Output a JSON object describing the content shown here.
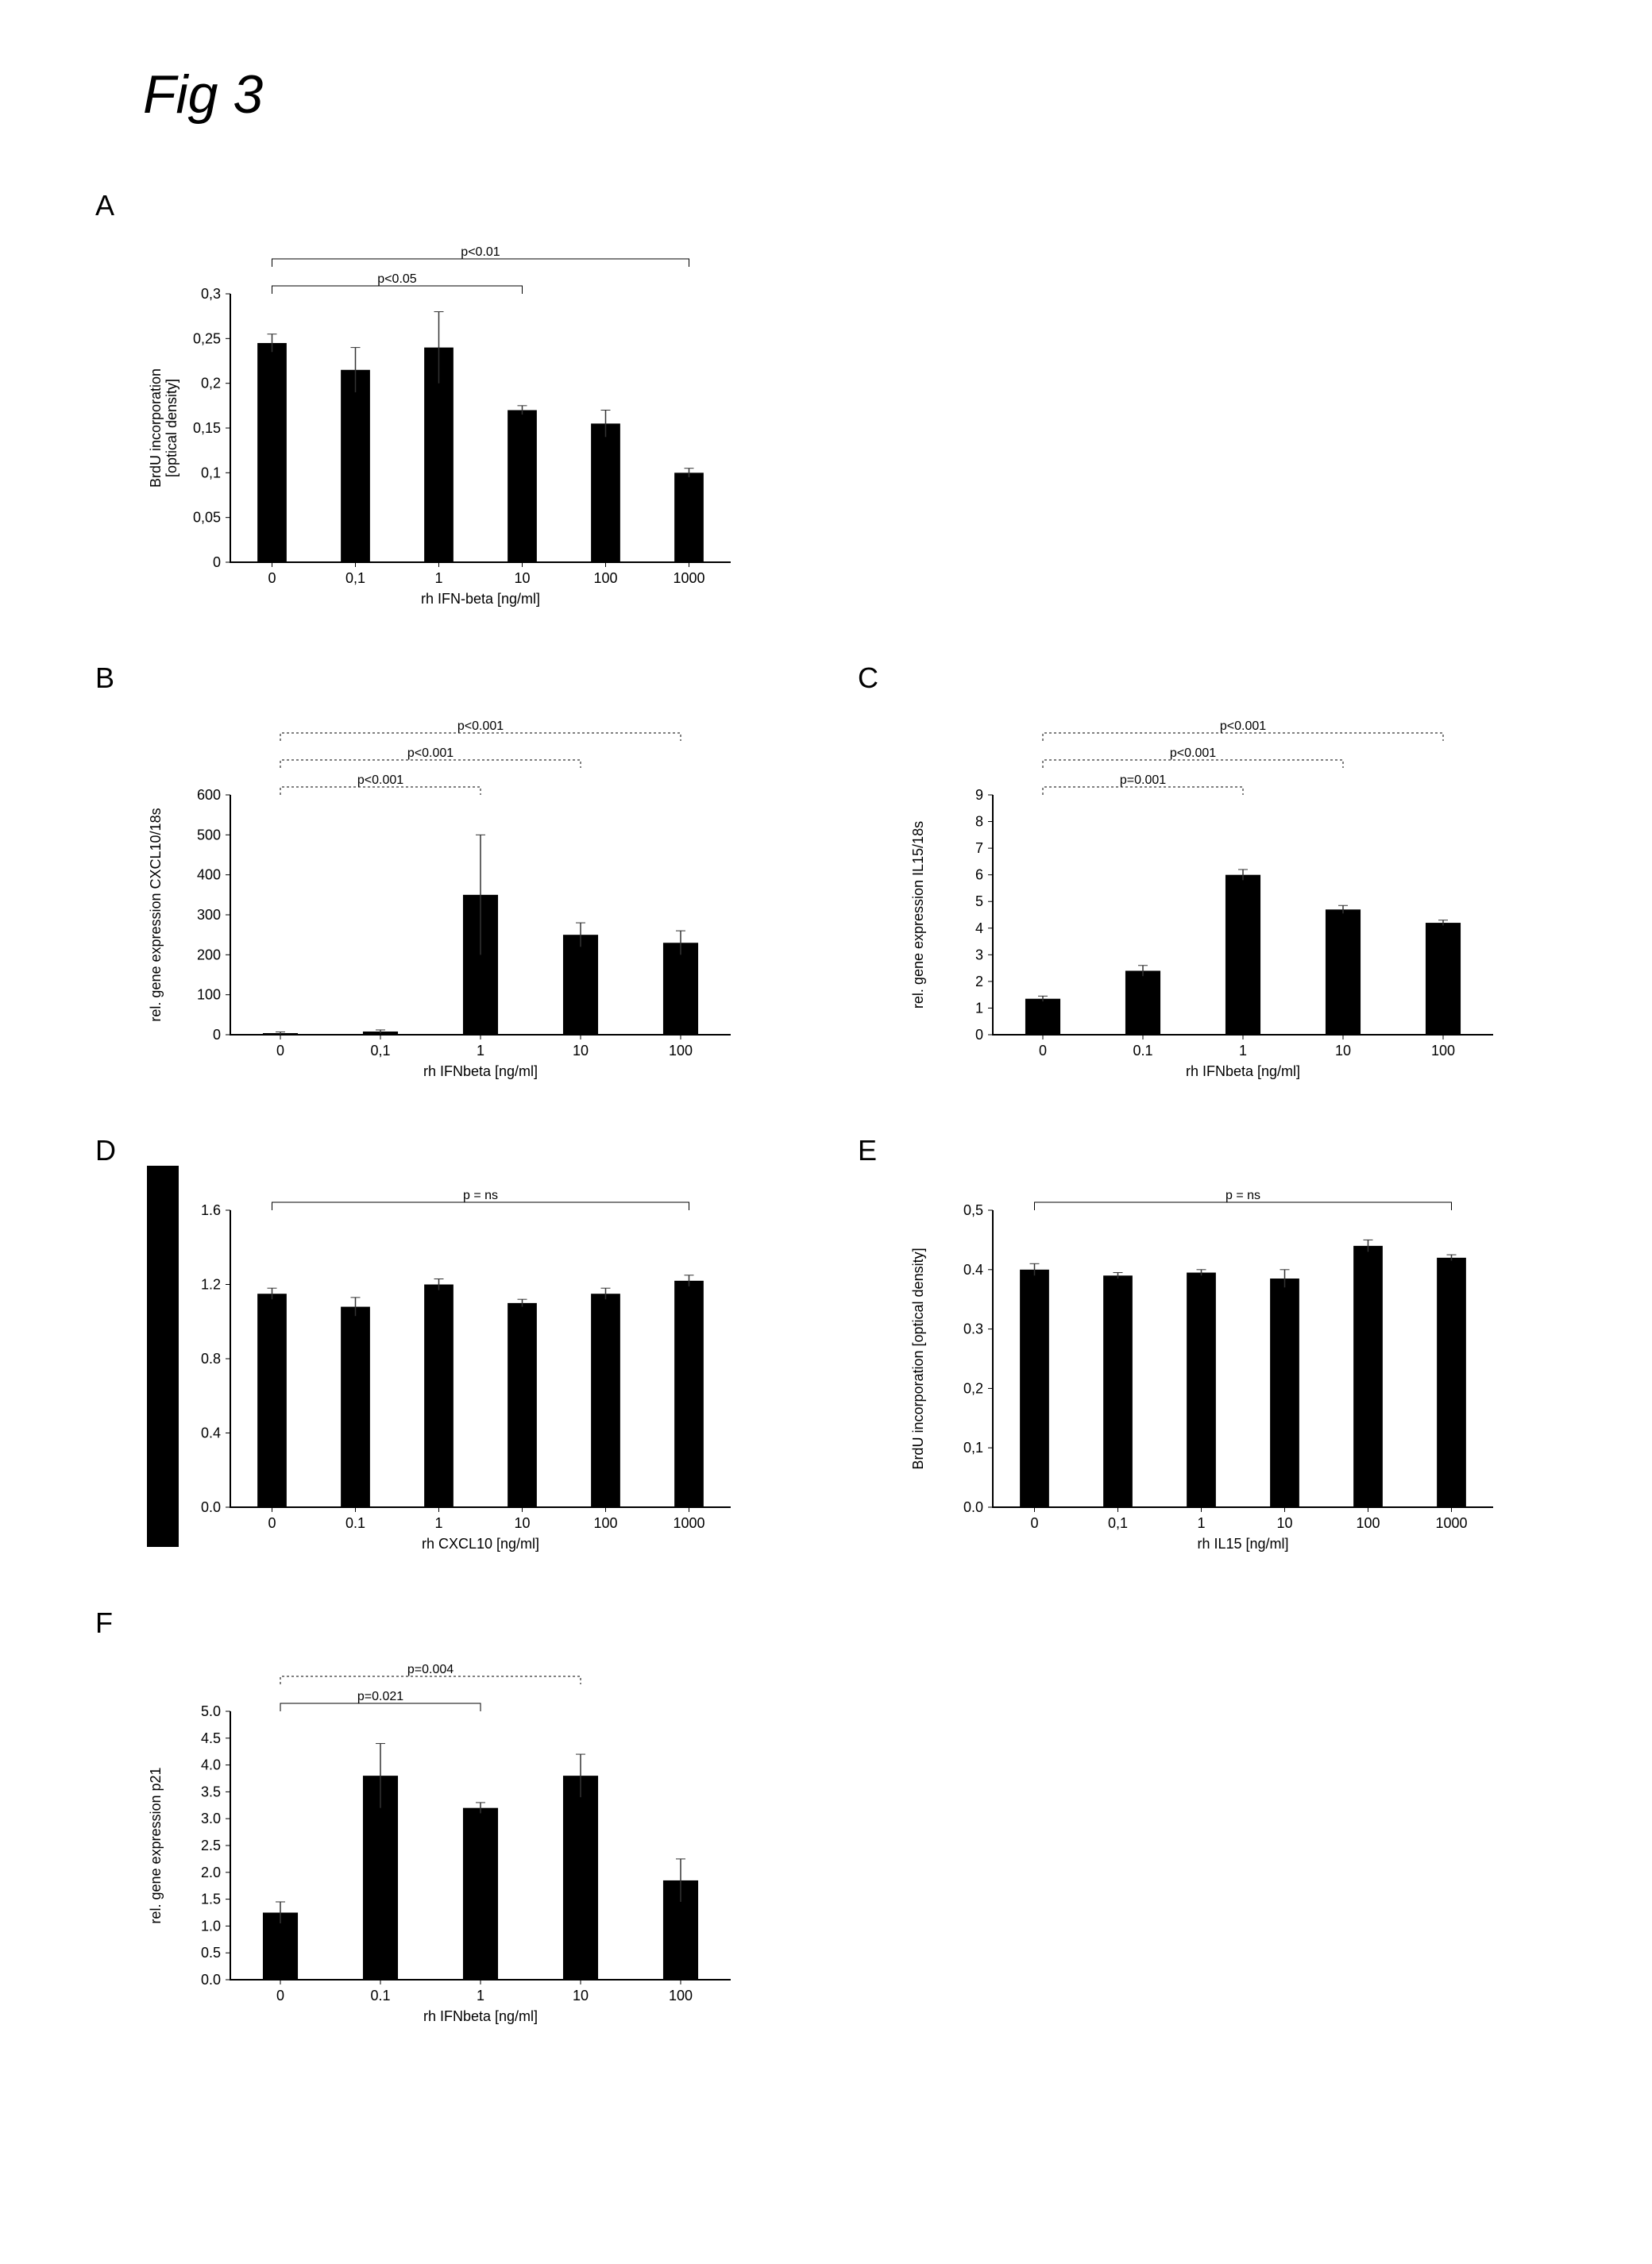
{
  "figure_title": "Fig 3",
  "panels": {
    "A": {
      "label": "A",
      "type": "bar",
      "ylabel": "BrdU incorporation\n[optical density]",
      "xlabel": "rh IFN-beta [ng/ml]",
      "categories": [
        "0",
        "0,1",
        "1",
        "10",
        "100",
        "1000"
      ],
      "values": [
        0.245,
        0.215,
        0.24,
        0.17,
        0.155,
        0.1
      ],
      "errors": [
        0.01,
        0.025,
        0.04,
        0.005,
        0.015,
        0.005
      ],
      "ylim": [
        0,
        0.3
      ],
      "ytick_step": 0.05,
      "yticks": [
        "0",
        "0,05",
        "0,1",
        "0,15",
        "0,2",
        "0,25",
        "0,3"
      ],
      "sig": [
        {
          "from": 0,
          "to": 3,
          "label": "p<0.05",
          "level": 1
        },
        {
          "from": 0,
          "to": 5,
          "label": "p<0.01",
          "level": 2
        }
      ],
      "bar_color": "#000000",
      "bg": "#ffffff",
      "label_fontsize": 18,
      "tick_fontsize": 18,
      "sig_fontsize": 16
    },
    "B": {
      "label": "B",
      "type": "bar",
      "ylabel": "rel. gene expression CXCL10/18s",
      "xlabel": "rh IFNbeta [ng/ml]",
      "categories": [
        "0",
        "0,1",
        "1",
        "10",
        "100"
      ],
      "values": [
        4,
        8,
        350,
        250,
        230
      ],
      "errors": [
        3,
        4,
        150,
        30,
        30
      ],
      "ylim": [
        0,
        600
      ],
      "ytick_step": 100,
      "yticks": [
        "0",
        "100",
        "200",
        "300",
        "400",
        "500",
        "600"
      ],
      "sig": [
        {
          "from": 0,
          "to": 2,
          "label": "p<0.001",
          "level": 1,
          "dotted": true
        },
        {
          "from": 0,
          "to": 3,
          "label": "p<0.001",
          "level": 2,
          "dotted": true
        },
        {
          "from": 0,
          "to": 4,
          "label": "p<0.001",
          "level": 3,
          "dotted": true
        }
      ],
      "bar_color": "#000000",
      "bg": "#ffffff",
      "label_fontsize": 18,
      "tick_fontsize": 18,
      "sig_fontsize": 16
    },
    "C": {
      "label": "C",
      "type": "bar",
      "ylabel": "rel. gene expression IL15/18s",
      "xlabel": "rh IFNbeta [ng/ml]",
      "categories": [
        "0",
        "0.1",
        "1",
        "10",
        "100"
      ],
      "values": [
        1.35,
        2.4,
        6.0,
        4.7,
        4.2
      ],
      "errors": [
        0.1,
        0.2,
        0.2,
        0.15,
        0.1
      ],
      "ylim": [
        0,
        9
      ],
      "ytick_step": 1,
      "yticks": [
        "0",
        "1",
        "2",
        "3",
        "4",
        "5",
        "6",
        "7",
        "8",
        "9"
      ],
      "sig": [
        {
          "from": 0,
          "to": 2,
          "label": "p=0.001",
          "level": 1,
          "dotted": true
        },
        {
          "from": 0,
          "to": 3,
          "label": "p<0.001",
          "level": 2,
          "dotted": true
        },
        {
          "from": 0,
          "to": 4,
          "label": "p<0.001",
          "level": 3,
          "dotted": true
        }
      ],
      "bar_color": "#000000",
      "bg": "#ffffff",
      "label_fontsize": 18,
      "tick_fontsize": 18,
      "sig_fontsize": 16
    },
    "D": {
      "label": "D",
      "type": "bar",
      "ylabel": "",
      "xlabel": "rh CXCL10 [ng/ml]",
      "categories": [
        "0",
        "0.1",
        "1",
        "10",
        "100",
        "1000"
      ],
      "values": [
        1.15,
        1.08,
        1.2,
        1.1,
        1.15,
        1.22
      ],
      "errors": [
        0.03,
        0.05,
        0.03,
        0.02,
        0.03,
        0.03
      ],
      "ylim": [
        0,
        1.6
      ],
      "ytick_step": 0.4,
      "yticks": [
        "0.0",
        "0.4",
        "0.8",
        "1.2",
        "1.6"
      ],
      "sig": [
        {
          "from": 0,
          "to": 5,
          "label": "p = ns",
          "level": 1
        }
      ],
      "bar_color": "#000000",
      "bg": "#ffffff",
      "label_fontsize": 18,
      "tick_fontsize": 18,
      "sig_fontsize": 16,
      "left_block": true
    },
    "E": {
      "label": "E",
      "type": "bar",
      "ylabel": "BrdU incorporation [optical density]",
      "xlabel": "rh IL15 [ng/ml]",
      "categories": [
        "0",
        "0,1",
        "1",
        "10",
        "100",
        "1000"
      ],
      "values": [
        0.4,
        0.39,
        0.395,
        0.385,
        0.44,
        0.42
      ],
      "errors": [
        0.01,
        0.005,
        0.005,
        0.015,
        0.01,
        0.005
      ],
      "ylim": [
        0,
        0.5
      ],
      "ytick_step": 0.1,
      "yticks": [
        "0.0",
        "0,1",
        "0,2",
        "0.3",
        "0.4",
        "0,5"
      ],
      "sig": [
        {
          "from": 0,
          "to": 5,
          "label": "p = ns",
          "level": 1
        }
      ],
      "bar_color": "#000000",
      "bg": "#ffffff",
      "label_fontsize": 18,
      "tick_fontsize": 18,
      "sig_fontsize": 16
    },
    "F": {
      "label": "F",
      "type": "bar",
      "ylabel": "rel. gene expression p21",
      "xlabel": "rh IFNbeta [ng/ml]",
      "categories": [
        "0",
        "0.1",
        "1",
        "10",
        "100"
      ],
      "values": [
        1.25,
        3.8,
        3.2,
        3.8,
        1.85
      ],
      "errors": [
        0.2,
        0.6,
        0.1,
        0.4,
        0.4
      ],
      "ylim": [
        0,
        5.0
      ],
      "ytick_step": 0.5,
      "yticks": [
        "0.0",
        "0.5",
        "1.0",
        "1.5",
        "2.0",
        "2.5",
        "3.0",
        "3.5",
        "4.0",
        "4.5",
        "5.0"
      ],
      "sig": [
        {
          "from": 0,
          "to": 2,
          "label": "p=0.021",
          "level": 1
        },
        {
          "from": 0,
          "to": 3,
          "label": "p=0.004",
          "level": 2,
          "dotted": true
        }
      ],
      "bar_color": "#000000",
      "bg": "#ffffff",
      "label_fontsize": 18,
      "tick_fontsize": 18,
      "sig_fontsize": 16
    }
  },
  "style": {
    "axis_color": "#000000",
    "grid_color": "#999999",
    "errorbar_color": "#333333"
  }
}
